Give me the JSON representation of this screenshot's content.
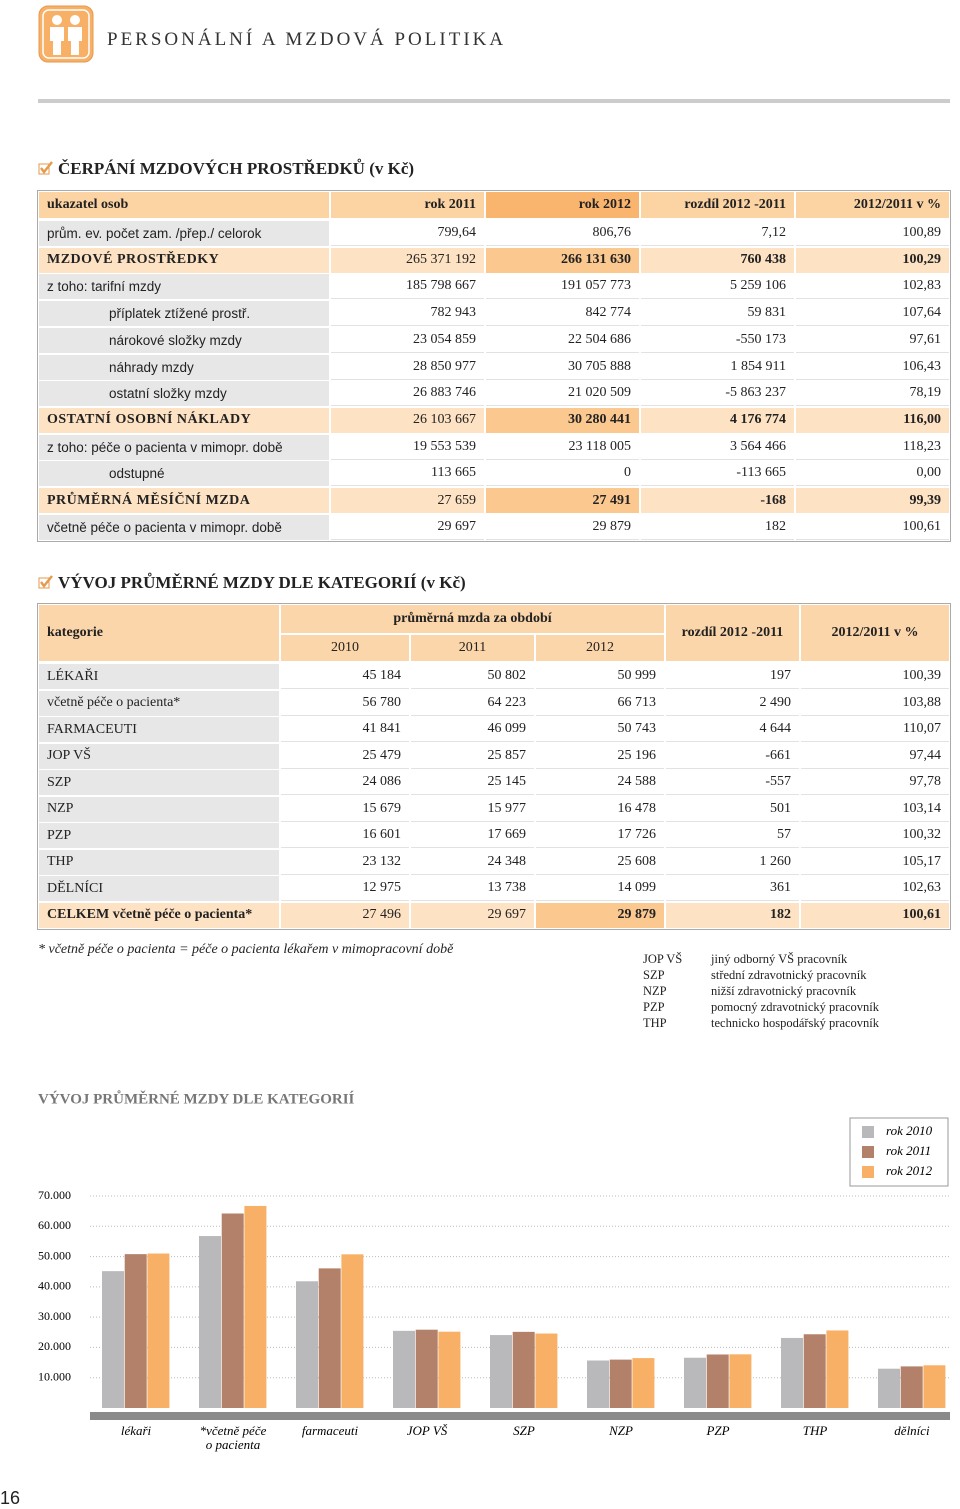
{
  "header": {
    "title": "PERSONÁLNÍ A MZDOVÁ POLITIKA"
  },
  "page_number": "16",
  "table1": {
    "title": "ČERPÁNÍ MZDOVÝCH PROSTŘEDKŮ (v Kč)",
    "columns": [
      "ukazatel osob",
      "rok 2011",
      "rok 2012",
      "rozdíl 2012 -2011",
      "2012/2011 v %"
    ],
    "rows": [
      [
        "prům. ev. počet zam. /přep./ celorok",
        "799,64",
        "806,76",
        "7,12",
        "100,89"
      ],
      [
        "MZDOVÉ PROSTŘEDKY",
        "265 371 192",
        "266 131 630",
        "760 438",
        "100,29"
      ],
      [
        "z toho:  tarifní mzdy",
        "185 798 667",
        "191 057 773",
        "5 259 106",
        "102,83"
      ],
      [
        "příplatek ztížené prostř.",
        "782 943",
        "842 774",
        "59 831",
        "107,64"
      ],
      [
        "nárokové složky mzdy",
        "23 054 859",
        "22 504 686",
        "-550 173",
        "97,61"
      ],
      [
        "náhrady mzdy",
        "28 850 977",
        "30 705 888",
        "1 854 911",
        "106,43"
      ],
      [
        "ostatní složky mzdy",
        "26 883 746",
        "21 020 509",
        "-5 863 237",
        "78,19"
      ],
      [
        "OSTATNÍ OSOBNÍ NÁKLADY",
        "26 103 667",
        "30 280 441",
        "4 176 774",
        "116,00"
      ],
      [
        "z toho:  péče o pacienta v mimopr. době",
        "19 553 539",
        "23 118 005",
        "3 564 466",
        "118,23"
      ],
      [
        "odstupné",
        "113 665",
        "0",
        "-113 665",
        "0,00"
      ],
      [
        "PRŮMĚRNÁ MĚSÍČNÍ MZDA",
        "27 659",
        "27 491",
        "-168",
        "99,39"
      ],
      [
        "včetně péče o pacienta v mimopr. době",
        "29 697",
        "29 879",
        "182",
        "100,61"
      ]
    ]
  },
  "table2": {
    "title": "VÝVOJ PRŮMĚRNÉ MZDY DLE KATEGORIÍ (v Kč)",
    "col_category": "kategorie",
    "group_header": "průměrná mzda za období",
    "years": [
      "2010",
      "2011",
      "2012"
    ],
    "col_diff": "rozdíl 2012 -2011",
    "col_pct": "2012/2011 v %",
    "rows": [
      [
        "LÉKAŘI",
        "45 184",
        "50 802",
        "50 999",
        "197",
        "100,39"
      ],
      [
        "včetně péče o pacienta*",
        "56 780",
        "64 223",
        "66 713",
        "2 490",
        "103,88"
      ],
      [
        "FARMACEUTI",
        "41 841",
        "46 099",
        "50 743",
        "4 644",
        "110,07"
      ],
      [
        "JOP VŠ",
        "25 479",
        "25 857",
        "25 196",
        "-661",
        "97,44"
      ],
      [
        "SZP",
        "24 086",
        "25 145",
        "24 588",
        "-557",
        "97,78"
      ],
      [
        "NZP",
        "15 679",
        "15 977",
        "16 478",
        "501",
        "103,14"
      ],
      [
        "PZP",
        "16 601",
        "17 669",
        "17 726",
        "57",
        "100,32"
      ],
      [
        "THP",
        "23 132",
        "24 348",
        "25 608",
        "1 260",
        "105,17"
      ],
      [
        "DĚLNÍCI",
        "12 975",
        "13 738",
        "14 099",
        "361",
        "102,63"
      ],
      [
        "CELKEM včetně péče o pacienta*",
        "27 496",
        "29 697",
        "29 879",
        "182",
        "100,61"
      ]
    ]
  },
  "footnote": "* včetně péče o pacienta = péče o pacienta lékařem v mimopracovní době",
  "abbreviations": [
    [
      "JOP VŠ",
      "jiný odborný VŠ pracovník"
    ],
    [
      "SZP",
      "střední zdravotnický pracovník"
    ],
    [
      "NZP",
      "nižší zdravotnický pracovník"
    ],
    [
      "PZP",
      "pomocný zdravotnický pracovník"
    ],
    [
      "THP",
      "technicko hospodářský pracovník"
    ]
  ],
  "chart_data": {
    "type": "bar",
    "title": "VÝVOJ PRŮMĚRNÉ MZDY DLE KATEGORIÍ",
    "categories": [
      "lékaři",
      "*včetně péče o pacienta",
      "farmaceuti",
      "JOP VŠ",
      "SZP",
      "NZP",
      "PZP",
      "THP",
      "dělníci"
    ],
    "series": [
      {
        "name": "rok 2010",
        "color": "#b9b9bc",
        "values": [
          45184,
          56780,
          41841,
          25479,
          24086,
          15679,
          16601,
          23132,
          12975
        ]
      },
      {
        "name": "rok 2011",
        "color": "#b3816a",
        "values": [
          50802,
          64223,
          46099,
          25857,
          25145,
          15977,
          17669,
          24348,
          13738
        ]
      },
      {
        "name": "rok 2012",
        "color": "#f7b066",
        "values": [
          50999,
          66713,
          50743,
          25196,
          24588,
          16478,
          17726,
          25608,
          14099
        ]
      }
    ],
    "ylim": [
      0,
      70000
    ],
    "yticks": [
      {
        "value": 10000,
        "label": "10.000"
      },
      {
        "value": 20000,
        "label": "20.000"
      },
      {
        "value": 30000,
        "label": "30.000"
      },
      {
        "value": 40000,
        "label": "40.000"
      },
      {
        "value": 50000,
        "label": "50.000"
      },
      {
        "value": 60000,
        "label": "60.000"
      },
      {
        "value": 70000,
        "label": "70.000"
      }
    ],
    "grid": true
  }
}
